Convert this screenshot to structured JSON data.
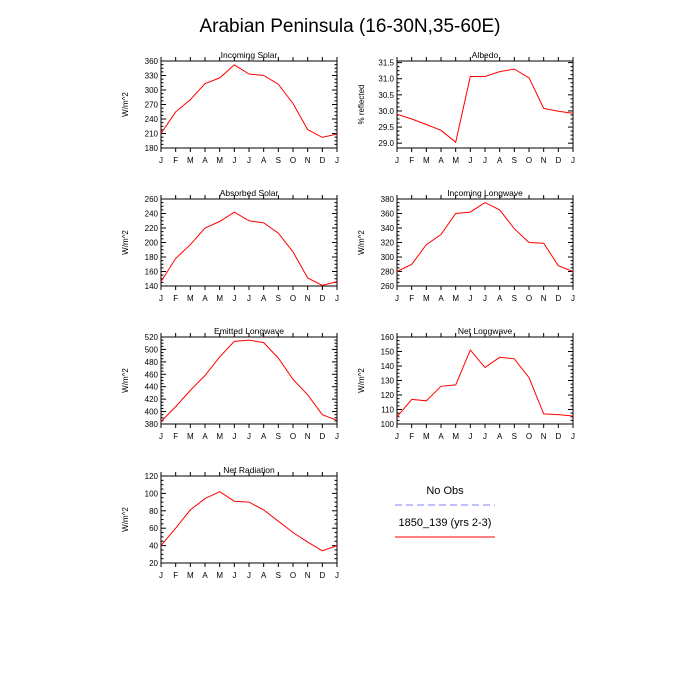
{
  "figure": {
    "title": "Arabian Peninsula (16-30N,35-60E)"
  },
  "legend": {
    "entries": [
      {
        "label": "No Obs",
        "color": "#8080ff",
        "style": "dashed"
      },
      {
        "label": "1850_139 (yrs 2-3)",
        "color": "#ff0000",
        "style": "solid"
      }
    ]
  },
  "chart_data": [
    {
      "type": "line",
      "title": "Incoming Solar",
      "ylabel": "W/m^2",
      "categories": [
        "J",
        "F",
        "M",
        "A",
        "M",
        "J",
        "J",
        "A",
        "S",
        "O",
        "N",
        "D",
        "J"
      ],
      "ylim": [
        180,
        360
      ],
      "yticks": [
        "180",
        "210",
        "240",
        "270",
        "300",
        "330",
        "360"
      ],
      "series": [
        {
          "name": "1850_139 (yrs 2-3)",
          "color": "#ff0000",
          "values": [
            210,
            255,
            280,
            313,
            325,
            352,
            333,
            330,
            312,
            272,
            218,
            202,
            209
          ]
        }
      ]
    },
    {
      "type": "line",
      "title": "Albedo",
      "ylabel": "% reflected",
      "categories": [
        "J",
        "F",
        "M",
        "A",
        "M",
        "J",
        "J",
        "A",
        "S",
        "O",
        "N",
        "D",
        "J"
      ],
      "ylim": [
        28.85,
        31.55
      ],
      "yticks": [
        "29.0",
        "29.5",
        "30.0",
        "30.5",
        "31.0",
        "31.5"
      ],
      "series": [
        {
          "name": "1850_139 (yrs 2-3)",
          "color": "#ff0000",
          "values": [
            29.9,
            29.75,
            29.58,
            29.4,
            29.03,
            31.07,
            31.07,
            31.22,
            31.3,
            31.03,
            30.08,
            29.99,
            29.93
          ]
        }
      ]
    },
    {
      "type": "line",
      "title": "Absorbed Solar",
      "ylabel": "W/m^2",
      "categories": [
        "J",
        "F",
        "M",
        "A",
        "M",
        "J",
        "J",
        "A",
        "S",
        "O",
        "N",
        "D",
        "J"
      ],
      "ylim": [
        140,
        260
      ],
      "yticks": [
        "140",
        "160",
        "180",
        "200",
        "220",
        "240",
        "260"
      ],
      "series": [
        {
          "name": "1850_139 (yrs 2-3)",
          "color": "#ff0000",
          "values": [
            146,
            178,
            197,
            220,
            229,
            242,
            230,
            227,
            213,
            187,
            151,
            141,
            146
          ]
        }
      ]
    },
    {
      "type": "line",
      "title": "Incoming Longwave",
      "ylabel": "W/m^2",
      "categories": [
        "J",
        "F",
        "M",
        "A",
        "M",
        "J",
        "J",
        "A",
        "S",
        "O",
        "N",
        "D",
        "J"
      ],
      "ylim": [
        260,
        380
      ],
      "yticks": [
        "260",
        "280",
        "300",
        "320",
        "340",
        "360",
        "380"
      ],
      "series": [
        {
          "name": "1850_139 (yrs 2-3)",
          "color": "#ff0000",
          "values": [
            280,
            290,
            317,
            331,
            360,
            362,
            375,
            365,
            339,
            320,
            319,
            288,
            280
          ]
        }
      ]
    },
    {
      "type": "line",
      "title": "Emitted Longwave",
      "ylabel": "W/m^2",
      "categories": [
        "J",
        "F",
        "M",
        "A",
        "M",
        "J",
        "J",
        "A",
        "S",
        "O",
        "N",
        "D",
        "J"
      ],
      "ylim": [
        380,
        520
      ],
      "yticks": [
        "380",
        "400",
        "420",
        "440",
        "460",
        "480",
        "500",
        "520"
      ],
      "series": [
        {
          "name": "1850_139 (yrs 2-3)",
          "color": "#ff0000",
          "values": [
            384,
            408,
            434,
            458,
            488,
            513,
            515,
            511,
            486,
            452,
            427,
            395,
            386
          ]
        }
      ]
    },
    {
      "type": "line",
      "title": "Net Longwave",
      "ylabel": "W/m^2",
      "categories": [
        "J",
        "F",
        "M",
        "A",
        "M",
        "J",
        "J",
        "A",
        "S",
        "O",
        "N",
        "D",
        "J"
      ],
      "ylim": [
        100,
        160
      ],
      "yticks": [
        "100",
        "110",
        "120",
        "130",
        "140",
        "150",
        "160"
      ],
      "series": [
        {
          "name": "1850_139 (yrs 2-3)",
          "color": "#ff0000",
          "values": [
            105,
            117,
            116,
            126,
            127,
            151,
            139,
            146,
            145,
            132,
            107,
            106.5,
            105.5
          ]
        }
      ]
    },
    {
      "type": "line",
      "title": "Net Radiation",
      "ylabel": "W/m^2",
      "categories": [
        "J",
        "F",
        "M",
        "A",
        "M",
        "J",
        "J",
        "A",
        "S",
        "O",
        "N",
        "D",
        "J"
      ],
      "ylim": [
        20,
        120
      ],
      "yticks": [
        "20",
        "40",
        "60",
        "80",
        "100",
        "120"
      ],
      "series": [
        {
          "name": "1850_139 (yrs 2-3)",
          "color": "#ff0000",
          "values": [
            40,
            60,
            81,
            94,
            102,
            91,
            90,
            81,
            68,
            55,
            44,
            34,
            40
          ]
        }
      ]
    }
  ]
}
